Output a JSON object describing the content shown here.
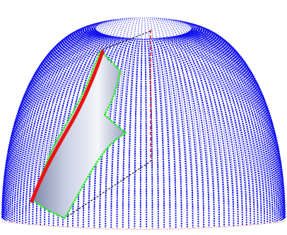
{
  "scene": {
    "colors": {
      "background": "#ffffff",
      "meridian": "#1010ee",
      "selected_path": "#ee1111",
      "boundary": "#22ee22",
      "axis": "#ee2222",
      "guide": "#000000",
      "surface_light": "#f4f6fb",
      "surface_dark": "#7d86a8"
    }
  }
}
